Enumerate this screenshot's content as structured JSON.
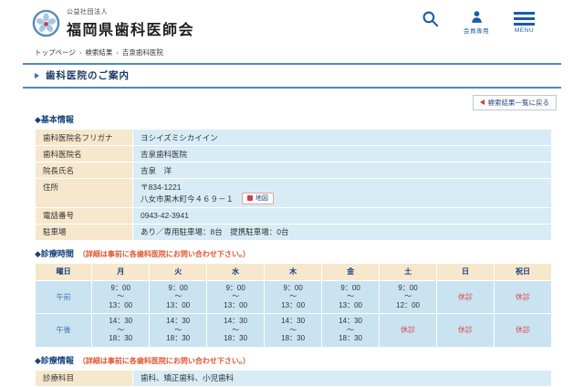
{
  "colors": {
    "accent_blue": "#1a5ca8",
    "navy_heading": "#15417e",
    "label_beige": "#f6e7cd",
    "value_light_blue": "#d8ecf5",
    "schedule_cell_blue": "#c9e3f1",
    "closed_red": "#e04848",
    "note_red": "#e0552e",
    "title_line_blue": "#4d8ac2"
  },
  "header": {
    "org_small": "公益社団法人",
    "org_name": "福岡県歯科医師会",
    "members_label": "会員専用",
    "menu_label": "MENU"
  },
  "breadcrumb": {
    "separator": "›",
    "items": [
      "トップページ",
      "検索結果",
      "吉泉歯科医院"
    ]
  },
  "page": {
    "title": "歯科医院のご案内",
    "back_button_label": "検索結果一覧に戻る"
  },
  "basic_info": {
    "heading": "◆基本情報",
    "rows": [
      {
        "label": "歯科医院名フリガナ",
        "value": "ヨシイズミシカイイン"
      },
      {
        "label": "歯科医院名",
        "value": "吉泉歯科医院"
      },
      {
        "label": "院長氏名",
        "value": "吉泉　洋"
      },
      {
        "label": "住所",
        "lines": [
          "〒834-1221",
          "八女市黒木町今４６９－１"
        ],
        "map_button": "地図"
      },
      {
        "label": "電話番号",
        "value": "0943-42-3941"
      },
      {
        "label": "駐車場",
        "value": "あり／専用駐車場：8台　提携駐車場：0台"
      }
    ]
  },
  "hours": {
    "heading": "◆診療時間",
    "note": "（詳細は事前に各歯科医院にお問い合わせ下さい。）",
    "day_header": "曜日",
    "days": [
      "月",
      "火",
      "水",
      "木",
      "金",
      "土",
      "日",
      "祝日"
    ],
    "tilde": "～",
    "closed_label": "休診",
    "rows": [
      {
        "label": "午前",
        "cells": [
          {
            "from": "9：00",
            "to": "13：00"
          },
          {
            "from": "9：00",
            "to": "13：00"
          },
          {
            "from": "9：00",
            "to": "13：00"
          },
          {
            "from": "9：00",
            "to": "13：00"
          },
          {
            "from": "9：00",
            "to": "13：00"
          },
          {
            "from": "9：00",
            "to": "12：00"
          },
          {
            "closed": true
          },
          {
            "closed": true
          }
        ]
      },
      {
        "label": "午後",
        "cells": [
          {
            "from": "14：30",
            "to": "18：30"
          },
          {
            "from": "14：30",
            "to": "18：30"
          },
          {
            "from": "14：30",
            "to": "18：30"
          },
          {
            "from": "14：30",
            "to": "18：30"
          },
          {
            "from": "14：30",
            "to": "18：30"
          },
          {
            "closed": true
          },
          {
            "closed": true
          },
          {
            "closed": true
          }
        ]
      }
    ]
  },
  "clinical_info": {
    "heading": "◆診療情報",
    "note": "（詳細は事前に各歯科医院にお問い合わせ下さい。）",
    "rows": [
      {
        "label": "診療科目",
        "value": "歯科、矯正歯科、小児歯科"
      }
    ]
  }
}
